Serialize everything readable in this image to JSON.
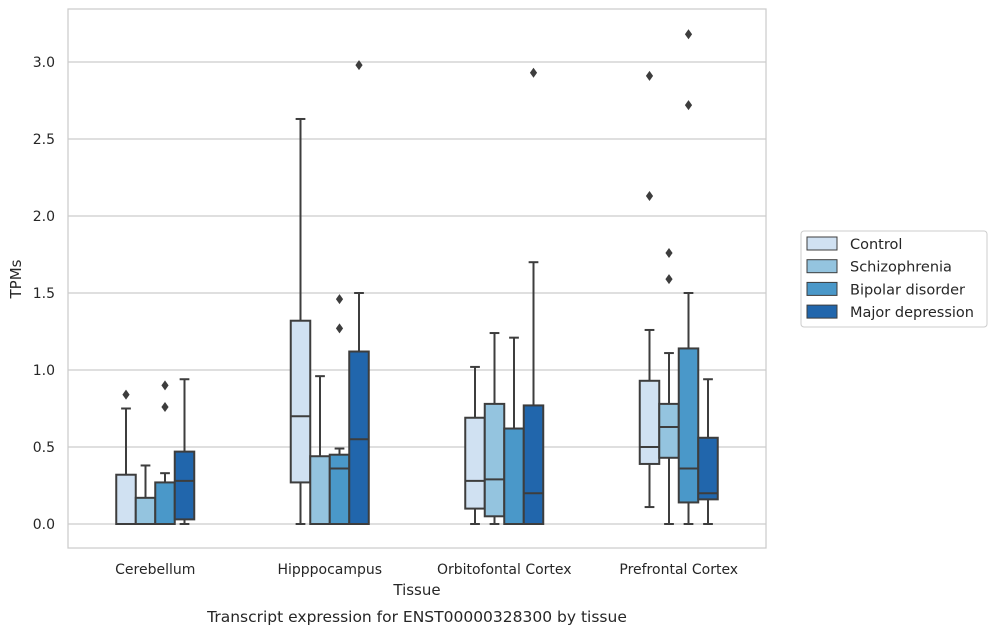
{
  "chart_data": {
    "type": "box",
    "caption": "Transcript expression for ENST00000328300 by tissue",
    "xlabel": "Tissue",
    "ylabel": "TPMs",
    "ylim": [
      -0.15,
      3.35
    ],
    "yticks": [
      0.0,
      0.5,
      1.0,
      1.5,
      2.0,
      2.5,
      3.0
    ],
    "ytick_labels": [
      "0.0",
      "0.5",
      "1.0",
      "1.5",
      "2.0",
      "2.5",
      "3.0"
    ],
    "grid": "horizontal",
    "legend_position": "right",
    "categories": [
      "Cerebellum",
      "Hipppocampus",
      "Orbitofontal Cortex",
      "Prefrontal Cortex"
    ],
    "series": [
      {
        "name": "Control",
        "color": "#d0e1f2",
        "boxes": [
          {
            "min": 0.0,
            "q1": 0.0,
            "median": 0.0,
            "q3": 0.32,
            "max": 0.75,
            "outliers": [
              0.84
            ]
          },
          {
            "min": 0.0,
            "q1": 0.27,
            "median": 0.7,
            "q3": 1.32,
            "max": 2.63,
            "outliers": []
          },
          {
            "min": 0.0,
            "q1": 0.1,
            "median": 0.28,
            "q3": 0.69,
            "max": 1.02,
            "outliers": []
          },
          {
            "min": 0.11,
            "q1": 0.39,
            "median": 0.5,
            "q3": 0.93,
            "max": 1.26,
            "outliers": [
              2.13,
              2.91
            ]
          }
        ]
      },
      {
        "name": "Schizophrenia",
        "color": "#94c4df",
        "boxes": [
          {
            "min": 0.0,
            "q1": 0.0,
            "median": 0.0,
            "q3": 0.17,
            "max": 0.38,
            "outliers": []
          },
          {
            "min": 0.0,
            "q1": 0.0,
            "median": 0.0,
            "q3": 0.44,
            "max": 0.96,
            "outliers": []
          },
          {
            "min": 0.0,
            "q1": 0.05,
            "median": 0.29,
            "q3": 0.78,
            "max": 1.24,
            "outliers": []
          },
          {
            "min": 0.0,
            "q1": 0.43,
            "median": 0.63,
            "q3": 0.78,
            "max": 1.11,
            "outliers": [
              1.59,
              1.76
            ]
          }
        ]
      },
      {
        "name": "Bipolar disorder",
        "color": "#4a98c9",
        "boxes": [
          {
            "min": 0.0,
            "q1": 0.0,
            "median": 0.0,
            "q3": 0.27,
            "max": 0.33,
            "outliers": [
              0.76,
              0.9
            ]
          },
          {
            "min": 0.0,
            "q1": 0.0,
            "median": 0.36,
            "q3": 0.45,
            "max": 0.49,
            "outliers": [
              1.27,
              1.46
            ]
          },
          {
            "min": 0.0,
            "q1": 0.0,
            "median": 0.0,
            "q3": 0.62,
            "max": 1.21,
            "outliers": []
          },
          {
            "min": 0.0,
            "q1": 0.14,
            "median": 0.36,
            "q3": 1.14,
            "max": 1.5,
            "outliers": [
              2.72,
              3.18
            ]
          }
        ]
      },
      {
        "name": "Major depression",
        "color": "#2166ac",
        "boxes": [
          {
            "min": 0.0,
            "q1": 0.03,
            "median": 0.28,
            "q3": 0.47,
            "max": 0.94,
            "outliers": []
          },
          {
            "min": 0.0,
            "q1": 0.0,
            "median": 0.55,
            "q3": 1.12,
            "max": 1.5,
            "outliers": [
              2.98
            ]
          },
          {
            "min": 0.0,
            "q1": 0.0,
            "median": 0.2,
            "q3": 0.77,
            "max": 1.7,
            "outliers": [
              2.93
            ]
          },
          {
            "min": 0.0,
            "q1": 0.16,
            "median": 0.2,
            "q3": 0.56,
            "max": 0.94,
            "outliers": []
          }
        ]
      }
    ]
  }
}
